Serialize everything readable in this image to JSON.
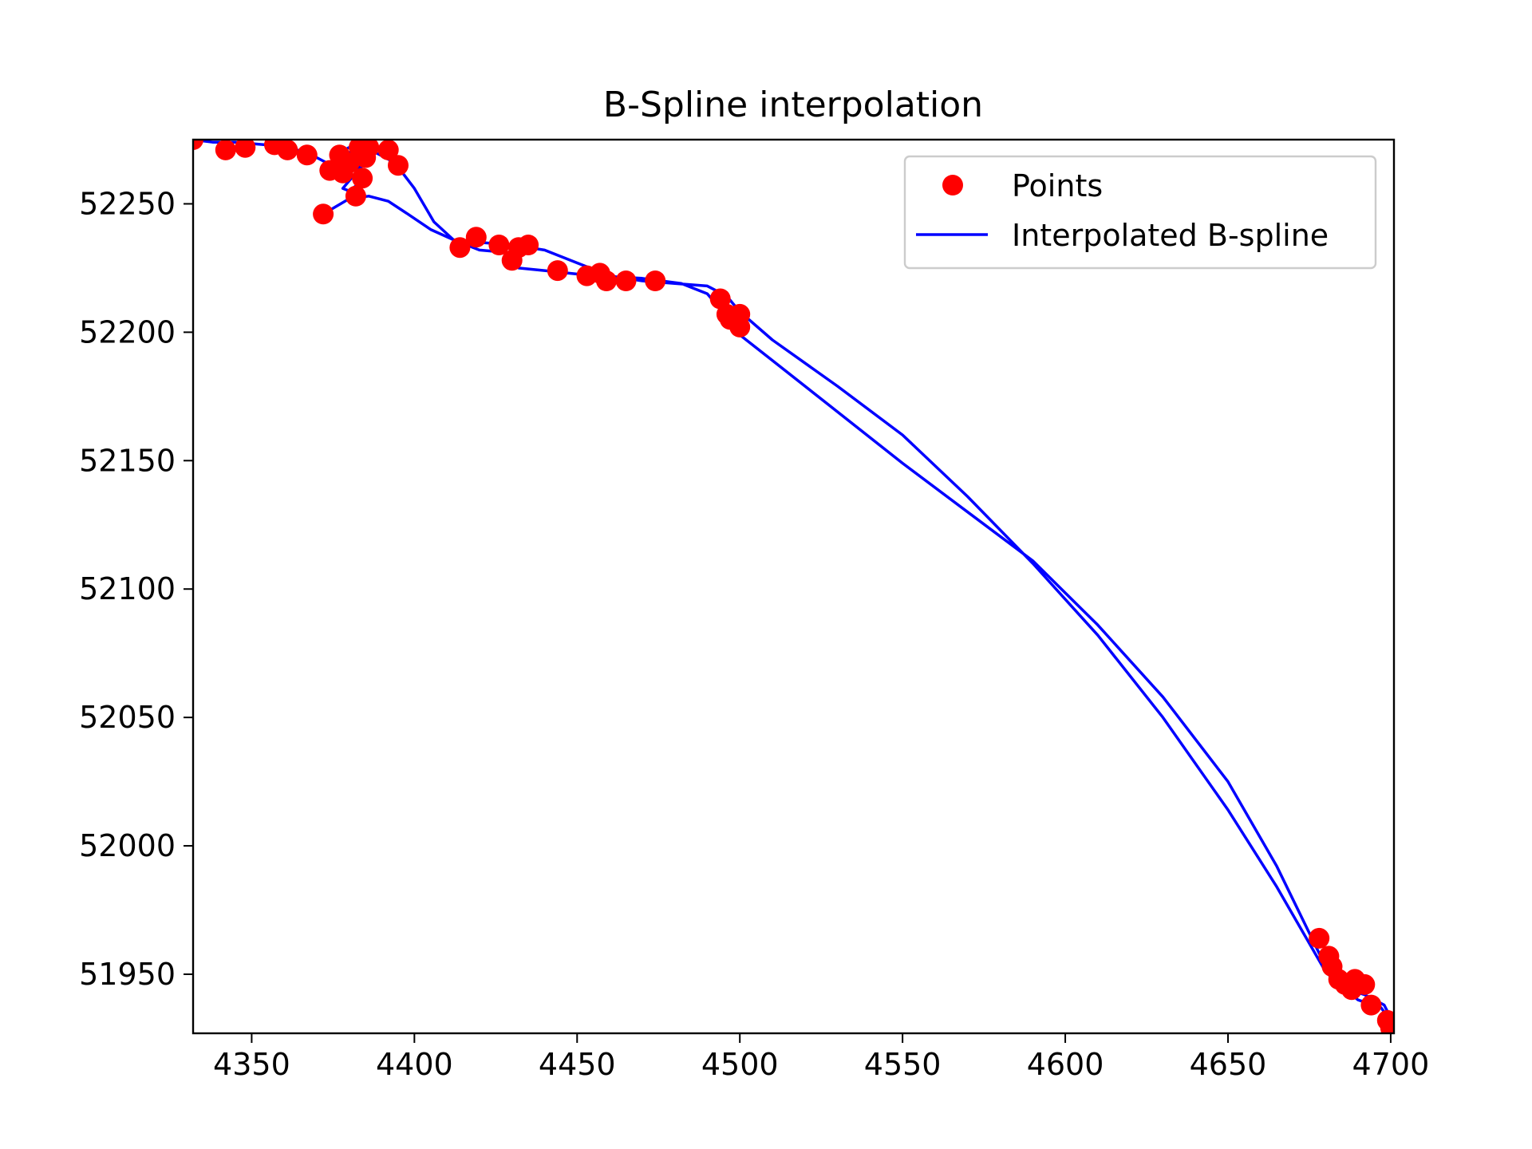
{
  "chart_data": {
    "type": "scatter",
    "title": "B-Spline interpolation",
    "xlabel": "",
    "ylabel": "",
    "xlim": [
      4332,
      4701
    ],
    "ylim": [
      51927,
      52275
    ],
    "xticks": [
      4350,
      4400,
      4450,
      4500,
      4550,
      4600,
      4650,
      4700
    ],
    "yticks": [
      51950,
      52000,
      52050,
      52100,
      52150,
      52200,
      52250
    ],
    "grid": false,
    "legend_position": "top-right",
    "colors": {
      "points": "#ff0000",
      "spline": "#0000ff",
      "axes": "#000000",
      "legend_border": "#cccccc"
    },
    "series": [
      {
        "name": "Points",
        "kind": "scatter",
        "points": [
          [
            4332,
            52275
          ],
          [
            4342,
            52271
          ],
          [
            4348,
            52272
          ],
          [
            4357,
            52273
          ],
          [
            4361,
            52271
          ],
          [
            4367,
            52269
          ],
          [
            4374,
            52263
          ],
          [
            4377,
            52269
          ],
          [
            4378,
            52262
          ],
          [
            4380,
            52266
          ],
          [
            4383,
            52272
          ],
          [
            4385,
            52268
          ],
          [
            4384,
            52260
          ],
          [
            4382,
            52253
          ],
          [
            4372,
            52246
          ],
          [
            4386,
            52272
          ],
          [
            4392,
            52271
          ],
          [
            4395,
            52265
          ],
          [
            4414,
            52233
          ],
          [
            4419,
            52237
          ],
          [
            4426,
            52234
          ],
          [
            4430,
            52228
          ],
          [
            4432,
            52233
          ],
          [
            4435,
            52234
          ],
          [
            4444,
            52224
          ],
          [
            4453,
            52222
          ],
          [
            4457,
            52223
          ],
          [
            4459,
            52220
          ],
          [
            4465,
            52220
          ],
          [
            4474,
            52220
          ],
          [
            4494,
            52213
          ],
          [
            4496,
            52207
          ],
          [
            4497,
            52205
          ],
          [
            4500,
            52207
          ],
          [
            4500,
            52202
          ],
          [
            4678,
            51964
          ],
          [
            4681,
            51957
          ],
          [
            4682,
            51953
          ],
          [
            4684,
            51948
          ],
          [
            4686,
            51946
          ],
          [
            4688,
            51944
          ],
          [
            4689,
            51948
          ],
          [
            4692,
            51946
          ],
          [
            4694,
            51938
          ],
          [
            4699,
            51932
          ],
          [
            4700,
            51929
          ]
        ]
      },
      {
        "name": "Interpolated B-spline",
        "kind": "line",
        "points": [
          [
            4372,
            52246
          ],
          [
            4380,
            52252
          ],
          [
            4386,
            52253
          ],
          [
            4392,
            52251
          ],
          [
            4398,
            52246
          ],
          [
            4405,
            52240
          ],
          [
            4412,
            52236
          ],
          [
            4420,
            52235
          ],
          [
            4430,
            52234
          ],
          [
            4440,
            52232
          ],
          [
            4450,
            52227
          ],
          [
            4460,
            52222
          ],
          [
            4470,
            52220
          ],
          [
            4480,
            52219
          ],
          [
            4490,
            52218
          ],
          [
            4496,
            52214
          ],
          [
            4500,
            52208
          ],
          [
            4510,
            52197
          ],
          [
            4530,
            52179
          ],
          [
            4550,
            52160
          ],
          [
            4570,
            52136
          ],
          [
            4590,
            52110
          ],
          [
            4610,
            52082
          ],
          [
            4630,
            52050
          ],
          [
            4650,
            52014
          ],
          [
            4665,
            51984
          ],
          [
            4675,
            51962
          ],
          [
            4680,
            51951
          ],
          [
            4685,
            51945
          ],
          [
            4692,
            51942
          ],
          [
            4698,
            51938
          ],
          [
            4700,
            51933
          ],
          [
            4701,
            51927
          ],
          [
            4700,
            51932
          ],
          [
            4697,
            51937
          ],
          [
            4690,
            51940
          ],
          [
            4684,
            51946
          ],
          [
            4680,
            51953
          ],
          [
            4675,
            51966
          ],
          [
            4665,
            51992
          ],
          [
            4650,
            52025
          ],
          [
            4630,
            52058
          ],
          [
            4610,
            52086
          ],
          [
            4590,
            52111
          ],
          [
            4570,
            52130
          ],
          [
            4550,
            52149
          ],
          [
            4530,
            52169
          ],
          [
            4510,
            52189
          ],
          [
            4498,
            52201
          ],
          [
            4494,
            52209
          ],
          [
            4490,
            52215
          ],
          [
            4482,
            52219
          ],
          [
            4470,
            52221
          ],
          [
            4455,
            52222
          ],
          [
            4440,
            52224
          ],
          [
            4432,
            52225
          ],
          [
            4430,
            52228
          ],
          [
            4429,
            52231
          ],
          [
            4420,
            52232
          ],
          [
            4412,
            52236
          ],
          [
            4406,
            52243
          ],
          [
            4400,
            52256
          ],
          [
            4394,
            52266
          ],
          [
            4388,
            52270
          ],
          [
            4386,
            52272
          ],
          [
            4384,
            52267
          ],
          [
            4383,
            52258
          ],
          [
            4380,
            52255
          ],
          [
            4378,
            52256
          ],
          [
            4382,
            52262
          ],
          [
            4384,
            52266
          ],
          [
            4380,
            52262
          ],
          [
            4376,
            52265
          ],
          [
            4377,
            52270
          ],
          [
            4380,
            52272
          ],
          [
            4384,
            52271
          ],
          [
            4388,
            52271
          ],
          [
            4392,
            52271
          ],
          [
            4386,
            52272
          ],
          [
            4380,
            52270
          ],
          [
            4376,
            52264
          ],
          [
            4370,
            52268
          ],
          [
            4362,
            52272
          ],
          [
            4354,
            52273
          ],
          [
            4345,
            52274
          ],
          [
            4338,
            52274
          ],
          [
            4332,
            52275
          ]
        ]
      }
    ]
  }
}
